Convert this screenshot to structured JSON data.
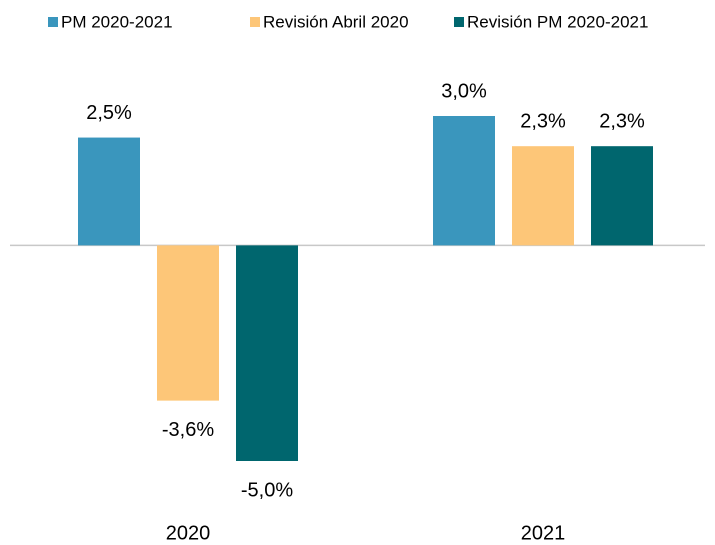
{
  "chart_data": {
    "type": "bar",
    "categories": [
      "2020",
      "2021"
    ],
    "series": [
      {
        "name": "PM 2020-2021",
        "color": "#3a96bd",
        "values": [
          2.5,
          3.0
        ],
        "value_labels": [
          "2,5%",
          "3,0%"
        ]
      },
      {
        "name": "Revisión Abril 2020",
        "color": "#fdc678",
        "values": [
          -3.6,
          2.3
        ],
        "value_labels": [
          "-3,6%",
          "2,3%"
        ]
      },
      {
        "name": "Revisión PM 2020-2021",
        "color": "#00666e",
        "values": [
          -5.0,
          2.3
        ],
        "value_labels": [
          "-5,0%",
          "2,3%"
        ]
      }
    ],
    "legend": "top"
  }
}
